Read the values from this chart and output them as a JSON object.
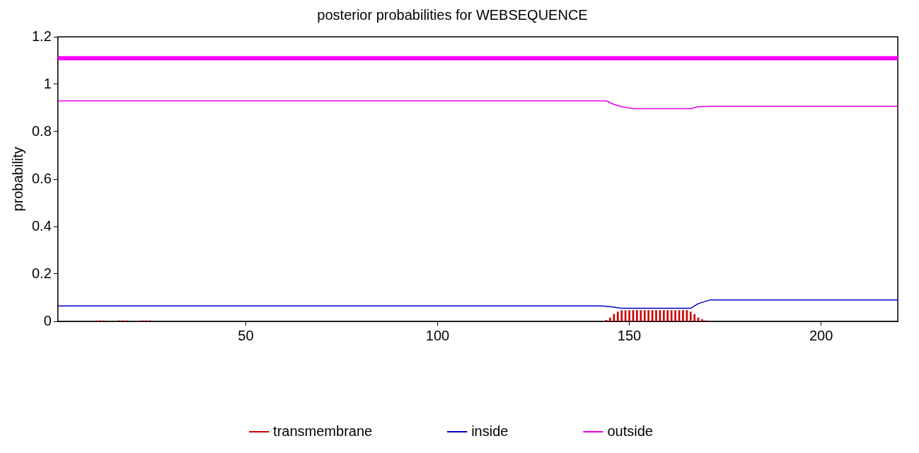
{
  "chart_data": {
    "type": "line",
    "title": "posterior probabilities for WEBSEQUENCE",
    "ylabel": "probability",
    "xlim": [
      1,
      220
    ],
    "xticks": [
      50,
      100,
      150,
      200
    ],
    "ylim": [
      0,
      1.2
    ],
    "yticks": [
      0,
      0.2,
      0.4,
      0.6,
      0.8,
      1,
      1.2
    ],
    "grid": false,
    "legend": "bottom",
    "marker": "none",
    "line_style": "solid",
    "series": [
      {
        "name": "transmembrane",
        "type": "bar",
        "color": "#cc0000",
        "x": [
          11,
          12,
          13,
          17,
          18,
          19,
          23,
          24,
          25,
          144,
          145,
          146,
          147,
          148,
          149,
          150,
          151,
          152,
          153,
          154,
          155,
          156,
          157,
          158,
          159,
          160,
          161,
          162,
          163,
          164,
          165,
          166,
          167,
          168,
          169,
          170
        ],
        "values": [
          0.003,
          0.003,
          0.003,
          0.003,
          0.003,
          0.003,
          0.003,
          0.003,
          0.003,
          0.005,
          0.015,
          0.03,
          0.04,
          0.046,
          0.046,
          0.046,
          0.046,
          0.046,
          0.046,
          0.046,
          0.046,
          0.046,
          0.046,
          0.046,
          0.046,
          0.046,
          0.046,
          0.046,
          0.046,
          0.046,
          0.046,
          0.04,
          0.03,
          0.015,
          0.008,
          0.003
        ]
      },
      {
        "name": "inside",
        "color": "#0000cc",
        "x": [
          1,
          143,
          145,
          148,
          165,
          166,
          168,
          171,
          220
        ],
        "values": [
          0.065,
          0.065,
          0.062,
          0.055,
          0.055,
          0.055,
          0.075,
          0.09,
          0.09
        ]
      },
      {
        "name": "outside",
        "color": "#e000e0",
        "x": [
          1,
          144,
          146,
          148,
          151,
          166,
          168,
          171,
          220
        ],
        "values": [
          0.93,
          0.93,
          0.915,
          0.905,
          0.897,
          0.897,
          0.905,
          0.907,
          0.907
        ]
      },
      {
        "type": "line",
        "color": "#ff00ff",
        "x": [
          1,
          220
        ],
        "values": [
          1.11,
          1.11
        ]
      }
    ]
  }
}
